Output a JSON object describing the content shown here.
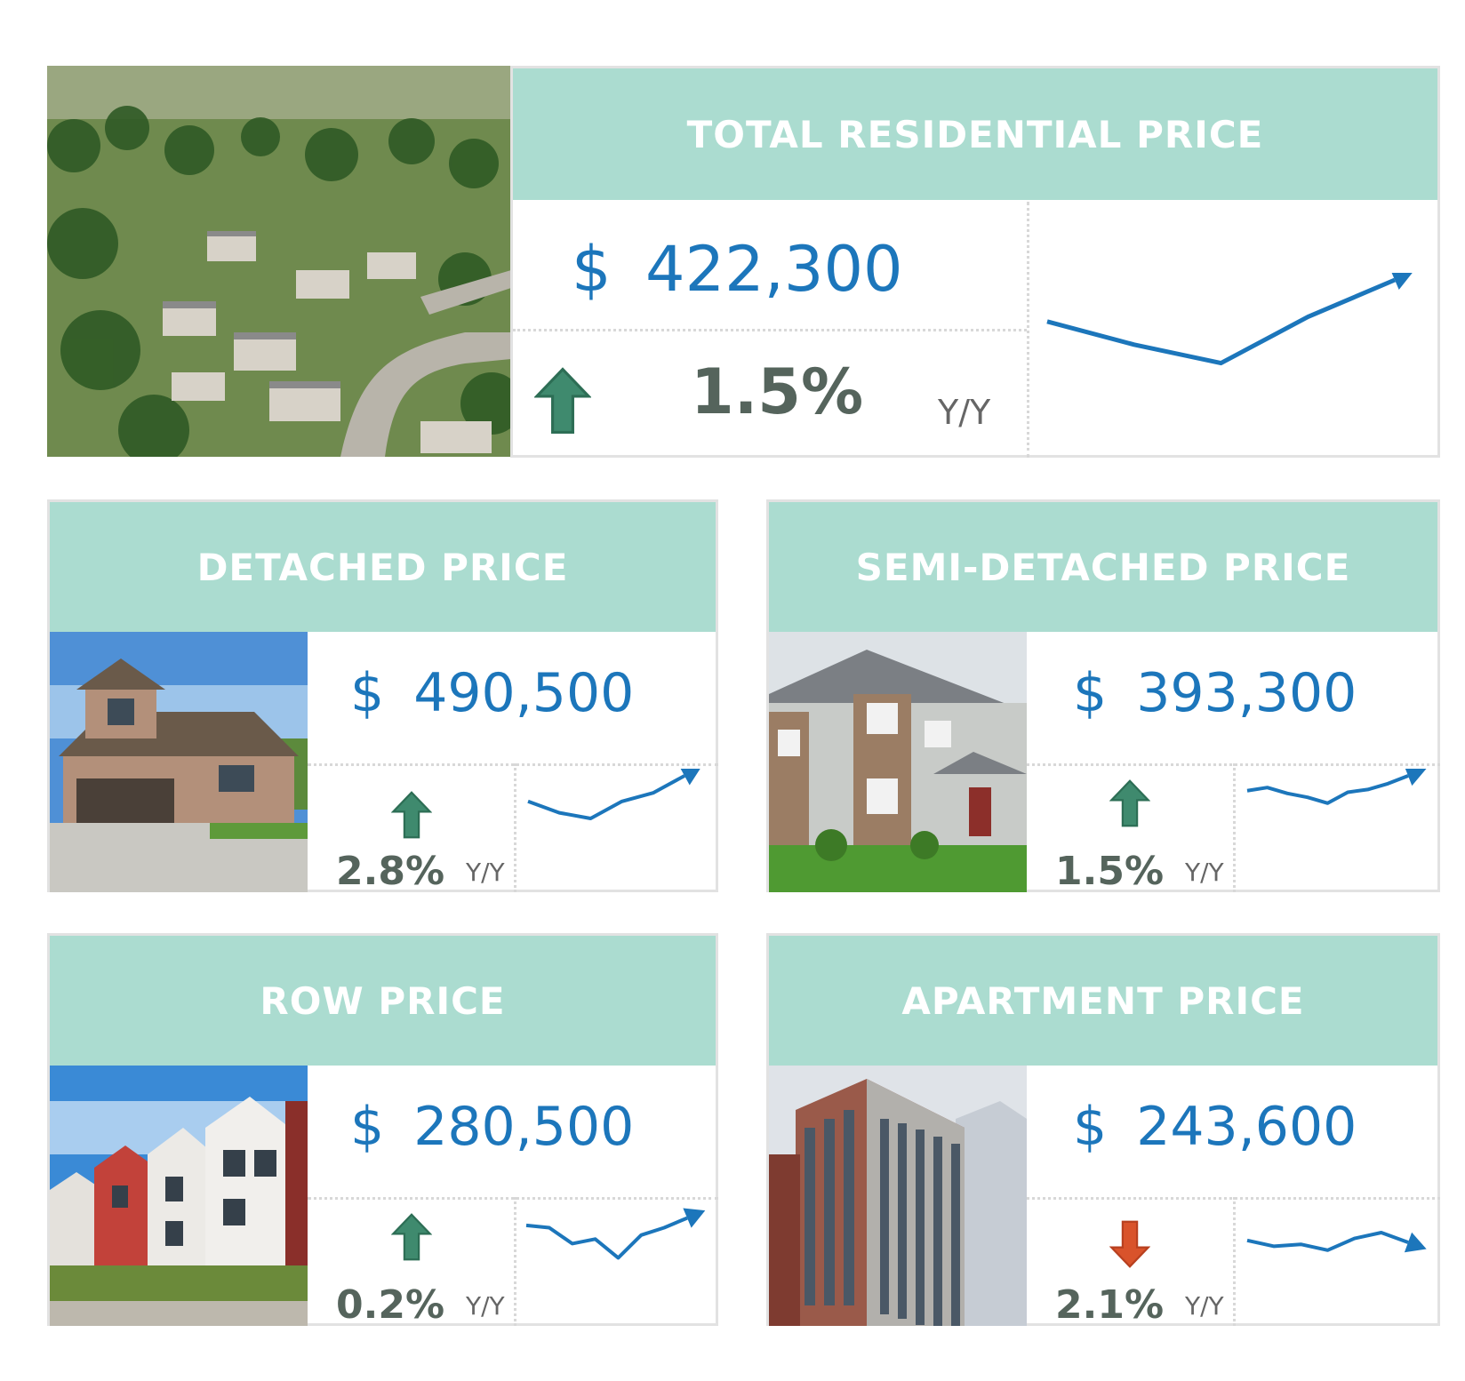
{
  "colors": {
    "header_bg": "#abdcd0",
    "price": "#1c76bb",
    "up": "#3f8a6e",
    "down": "#d9532b",
    "trend_line": "#1c76bb"
  },
  "total": {
    "title": "TOTAL RESIDENTIAL PRICE",
    "currency": "$",
    "price": "422,300",
    "direction": "up",
    "change": "1.5%",
    "period": "Y/Y",
    "image": "aerial-neighborhood-photo",
    "trend": [
      0.55,
      0.3,
      0.1,
      0.6,
      1.0
    ]
  },
  "detached": {
    "title": "DETACHED PRICE",
    "currency": "$",
    "price": "490,500",
    "direction": "up",
    "change": "2.8%",
    "period": "Y/Y",
    "image": "detached-house-photo",
    "trend": [
      0.55,
      0.35,
      0.25,
      0.55,
      0.7,
      1.0
    ]
  },
  "semi": {
    "title": "SEMI-DETACHED PRICE",
    "currency": "$",
    "price": "393,300",
    "direction": "up",
    "change": "1.5%",
    "period": "Y/Y",
    "image": "semi-detached-house-photo",
    "trend": [
      0.62,
      0.7,
      0.55,
      0.45,
      0.3,
      0.58,
      0.65,
      0.8,
      1.0
    ]
  },
  "row": {
    "title": "ROW PRICE",
    "currency": "$",
    "price": "280,500",
    "direction": "up",
    "change": "0.2%",
    "period": "Y/Y",
    "image": "row-houses-photo",
    "trend": [
      0.72,
      0.68,
      0.4,
      0.48,
      0.15,
      0.55,
      0.68,
      0.85
    ]
  },
  "apartment": {
    "title": "APARTMENT PRICE",
    "currency": "$",
    "price": "243,600",
    "direction": "down",
    "change": "2.1%",
    "period": "Y/Y",
    "image": "apartment-building-photo",
    "trend": [
      0.55,
      0.4,
      0.45,
      0.3,
      0.6,
      0.75,
      0.5
    ]
  }
}
